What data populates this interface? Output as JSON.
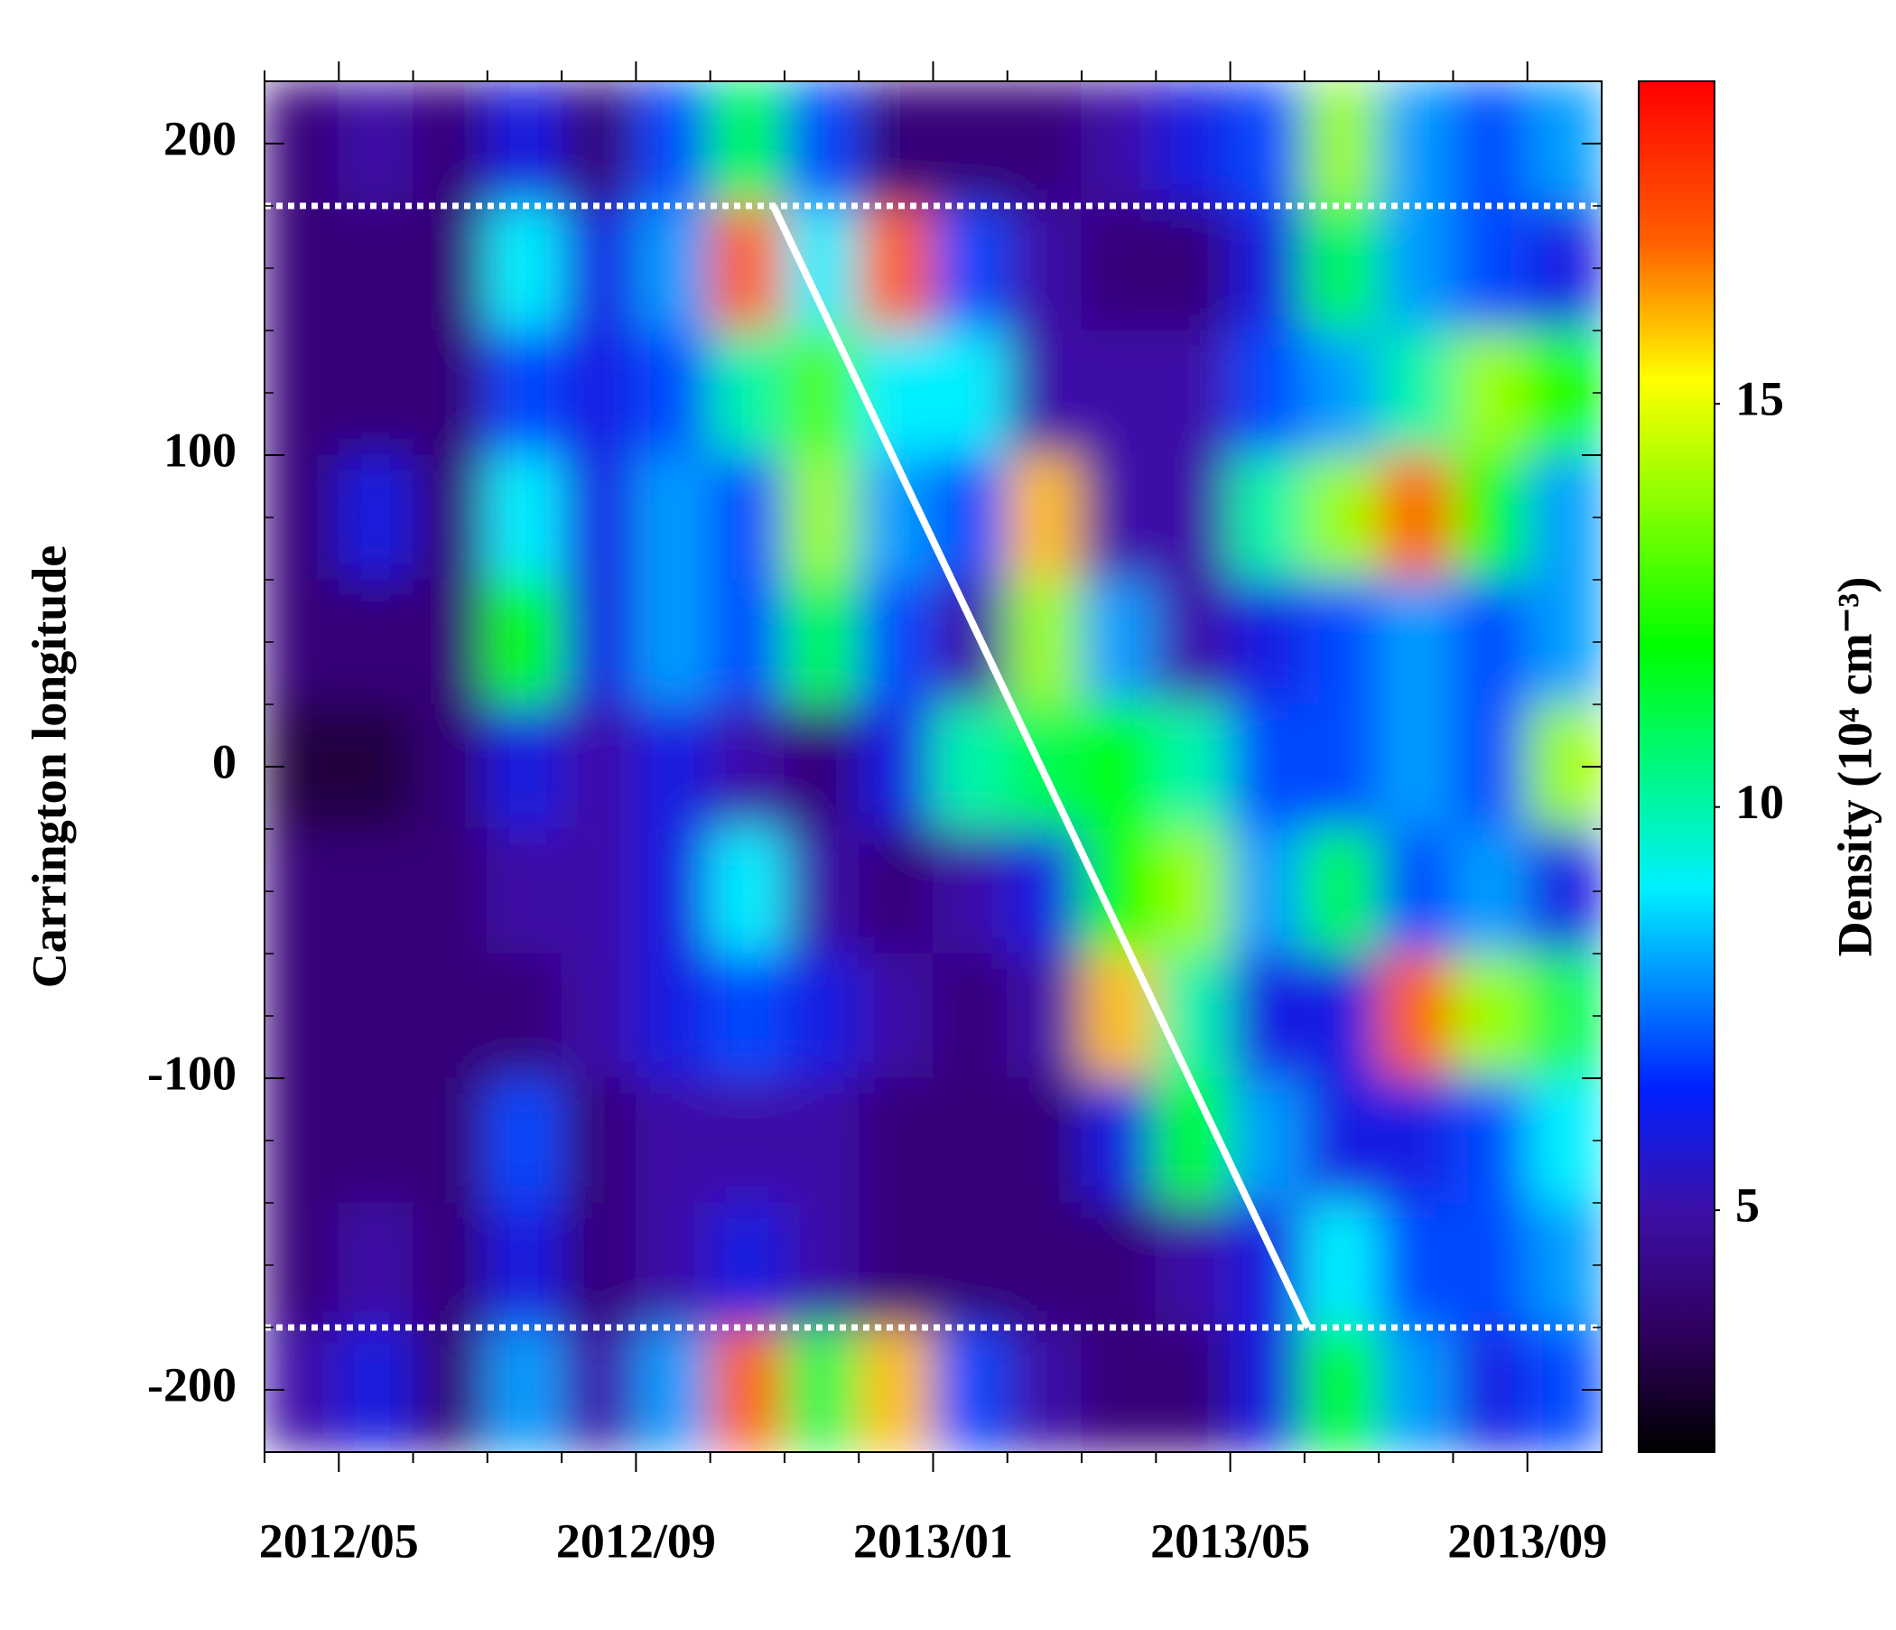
{
  "chart_data": {
    "type": "heatmap",
    "categories": [
      null,
      "2012/05",
      null,
      null,
      null,
      "2012/09",
      null,
      null,
      null,
      "2013/01",
      null,
      null,
      null,
      "2013/05",
      null,
      null,
      null,
      "2013/09"
    ],
    "y": [
      200,
      160,
      120,
      80,
      40,
      0,
      -40,
      -80,
      -120,
      -160,
      -200
    ],
    "y_bin_width": 40,
    "ylabel": "Carrington longitude",
    "ylim": [
      -220,
      220
    ],
    "yticks": [
      -200,
      -100,
      0,
      100,
      200
    ],
    "z": [
      [
        4,
        5,
        4,
        6,
        4,
        7,
        11,
        7,
        4,
        4,
        4,
        5,
        6,
        7,
        14,
        8,
        7,
        8
      ],
      [
        4,
        4,
        4,
        9,
        6,
        8,
        17,
        9,
        17,
        7,
        5,
        4,
        4,
        6,
        11,
        8,
        7,
        6
      ],
      [
        4,
        4,
        4,
        7,
        6,
        7,
        10,
        13,
        9,
        9,
        5,
        5,
        5,
        7,
        8,
        10,
        14,
        12
      ],
      [
        4,
        6,
        4,
        9,
        6,
        8,
        7,
        14,
        8,
        7,
        16,
        5,
        5,
        10,
        14,
        17,
        12,
        8
      ],
      [
        4,
        4,
        4,
        12,
        6,
        8,
        7,
        11,
        7,
        5,
        14,
        8,
        5,
        6,
        7,
        8,
        7,
        8
      ],
      [
        3,
        3,
        4,
        6,
        5,
        6,
        5,
        4,
        6,
        10,
        11,
        12,
        10,
        7,
        7,
        8,
        7,
        14
      ],
      [
        4,
        4,
        4,
        5,
        5,
        6,
        9,
        5,
        4,
        5,
        6,
        12,
        14,
        8,
        11,
        7,
        8,
        6
      ],
      [
        4,
        4,
        4,
        4,
        5,
        6,
        7,
        6,
        5,
        4,
        5,
        16,
        10,
        6,
        6,
        17,
        14,
        11
      ],
      [
        4,
        4,
        4,
        7,
        4,
        5,
        5,
        5,
        4,
        4,
        4,
        6,
        12,
        8,
        6,
        6,
        7,
        9
      ],
      [
        4,
        5,
        4,
        6,
        4,
        5,
        6,
        5,
        4,
        4,
        4,
        4,
        5,
        6,
        9,
        7,
        7,
        8
      ],
      [
        5,
        6,
        4,
        8,
        5,
        8,
        17,
        11,
        16,
        7,
        5,
        4,
        4,
        6,
        12,
        8,
        6,
        7
      ]
    ],
    "colorbar_label": "Density (10⁴ cm⁻³)",
    "zlim": [
      2,
      19
    ],
    "zticks": [
      5,
      10,
      15
    ],
    "colormap": [
      {
        "value": 2,
        "color": "#000000"
      },
      {
        "value": 3.5,
        "color": "#300060"
      },
      {
        "value": 5,
        "color": "#3c10a8"
      },
      {
        "value": 6.5,
        "color": "#0020ff"
      },
      {
        "value": 9,
        "color": "#00f0ff"
      },
      {
        "value": 12,
        "color": "#00ff00"
      },
      {
        "value": 15.3,
        "color": "#ffff00"
      },
      {
        "value": 17,
        "color": "#ff6000"
      },
      {
        "value": 19,
        "color": "#ff0000"
      }
    ],
    "reference_lines": [
      180,
      -180
    ],
    "trend_line": {
      "x": [
        6.85,
        14.05
      ],
      "y": [
        180,
        -180
      ]
    }
  }
}
